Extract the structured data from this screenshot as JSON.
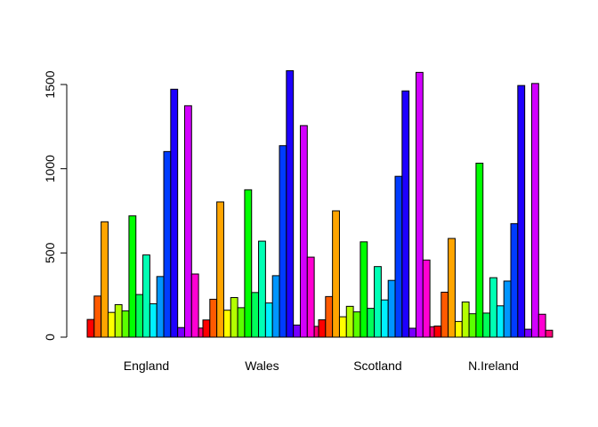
{
  "chart_data": {
    "type": "bar",
    "categories": [
      "England",
      "Wales",
      "Scotland",
      "N.Ireland"
    ],
    "series_colors": [
      "#FF0000",
      "#FF4000",
      "#FF8000",
      "#FFBF00",
      "#FFFF00",
      "#BFFF00",
      "#80FF00",
      "#40FF00",
      "#00FF00",
      "#00FF40",
      "#00FF80",
      "#00FFBF",
      "#00FFFF",
      "#00BFFF",
      "#0080FF",
      "#0040FF",
      "#0000FF",
      "#4000FF",
      "#8000FF",
      "#BF00FF",
      "#FF00FF",
      "#FF00BF",
      "#FF0080",
      "#FF0040"
    ],
    "groups": [
      [
        105,
        244,
        685,
        147,
        193,
        156,
        720,
        253,
        488,
        198,
        360,
        1102,
        1472,
        57,
        1374,
        375,
        54
      ],
      [
        102,
        225,
        803,
        160,
        235,
        175,
        875,
        265,
        570,
        203,
        365,
        1137,
        1582,
        72,
        1256,
        475,
        64
      ],
      [
        103,
        241,
        750,
        121,
        183,
        150,
        566,
        171,
        419,
        221,
        337,
        955,
        1462,
        53,
        1572,
        458,
        62
      ],
      [
        66,
        267,
        586,
        93,
        209,
        139,
        1033,
        143,
        353,
        186,
        333,
        674,
        1494,
        47,
        1506,
        136,
        41
      ]
    ],
    "bar_colors": [
      "#FF0000",
      "#FF5A00",
      "#FFA500",
      "#FFFF00",
      "#B4FF00",
      "#5AFF00",
      "#00FF00",
      "#00FF5A",
      "#00FFB4",
      "#00F0FF",
      "#0096FF",
      "#003CFF",
      "#1E00FF",
      "#7800FF",
      "#D200FF",
      "#FF00D2",
      "#FF0078"
    ],
    "yticks": [
      0,
      500,
      1000,
      1500
    ],
    "ylim": [
      0,
      1600
    ],
    "grid": false,
    "legend": "none"
  }
}
